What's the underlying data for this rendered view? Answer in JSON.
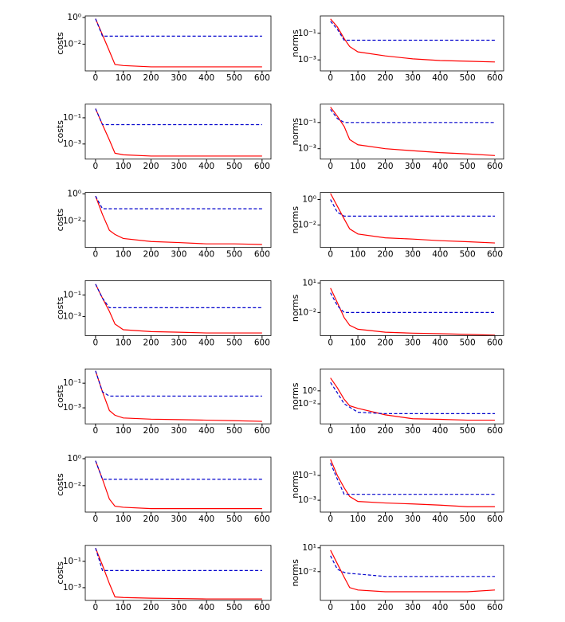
{
  "chart_data": [
    {
      "type": "line",
      "ylabel": "costs",
      "yscale": "log",
      "xlim": [
        -37,
        632
      ],
      "xticks": [
        0,
        100,
        200,
        300,
        400,
        500,
        600
      ],
      "ylim": [
        0.0001,
        1.3
      ],
      "yticks": [
        {
          "value": 1,
          "label": "10⁰"
        },
        {
          "value": 0.01,
          "label": "10⁻²"
        }
      ],
      "x": [
        0,
        25,
        50,
        70,
        100,
        200,
        300,
        400,
        500,
        600
      ],
      "series": [
        {
          "color": "#ff0000",
          "linestyle": "solid",
          "values": [
            0.8,
            0.05,
            0.003,
            0.0003,
            0.00025,
            0.0002,
            0.0002,
            0.0002,
            0.0002,
            0.0002
          ]
        },
        {
          "color": "#0000cc",
          "linestyle": "dashed",
          "values": [
            0.8,
            0.04,
            0.04,
            0.04,
            0.04,
            0.04,
            0.04,
            0.04,
            0.04,
            0.04
          ]
        }
      ]
    },
    {
      "type": "line",
      "ylabel": "norms",
      "yscale": "log",
      "xlim": [
        -37,
        632
      ],
      "xticks": [
        0,
        100,
        200,
        300,
        400,
        500,
        600
      ],
      "ylim": [
        0.00015,
        2
      ],
      "yticks": [
        {
          "value": 0.1,
          "label": "10⁻¹"
        },
        {
          "value": 0.001,
          "label": "10⁻³"
        }
      ],
      "x": [
        0,
        25,
        50,
        70,
        100,
        200,
        300,
        400,
        500,
        600
      ],
      "series": [
        {
          "color": "#ff0000",
          "linestyle": "solid",
          "values": [
            1.2,
            0.3,
            0.04,
            0.01,
            0.004,
            0.002,
            0.0012,
            0.0009,
            0.0008,
            0.0007
          ]
        },
        {
          "color": "#0000cc",
          "linestyle": "dashed",
          "values": [
            0.8,
            0.2,
            0.03,
            0.03,
            0.03,
            0.03,
            0.03,
            0.03,
            0.03,
            0.03
          ]
        }
      ]
    },
    {
      "type": "line",
      "ylabel": "costs",
      "yscale": "log",
      "xlim": [
        -37,
        632
      ],
      "xticks": [
        0,
        100,
        200,
        300,
        400,
        500,
        600
      ],
      "ylim": [
        7e-05,
        1.1
      ],
      "yticks": [
        {
          "value": 0.1,
          "label": "10⁻¹"
        },
        {
          "value": 0.001,
          "label": "10⁻³"
        }
      ],
      "x": [
        0,
        25,
        50,
        70,
        100,
        200,
        300,
        400,
        500,
        600
      ],
      "series": [
        {
          "color": "#ff0000",
          "linestyle": "solid",
          "values": [
            0.5,
            0.03,
            0.002,
            0.0002,
            0.00015,
            0.00012,
            0.00012,
            0.00012,
            0.00012,
            0.00012
          ]
        },
        {
          "color": "#0000cc",
          "linestyle": "dashed",
          "values": [
            0.5,
            0.03,
            0.03,
            0.03,
            0.03,
            0.03,
            0.03,
            0.03,
            0.03,
            0.03
          ]
        }
      ]
    },
    {
      "type": "line",
      "ylabel": "norms",
      "yscale": "log",
      "xlim": [
        -37,
        632
      ],
      "xticks": [
        0,
        100,
        200,
        300,
        400,
        500,
        600
      ],
      "ylim": [
        0.00016,
        2.5
      ],
      "yticks": [
        {
          "value": 0.1,
          "label": "10⁻¹"
        },
        {
          "value": 0.001,
          "label": "10⁻³"
        }
      ],
      "x": [
        0,
        25,
        50,
        70,
        100,
        200,
        300,
        400,
        500,
        600
      ],
      "series": [
        {
          "color": "#ff0000",
          "linestyle": "solid",
          "values": [
            1.5,
            0.3,
            0.05,
            0.005,
            0.002,
            0.001,
            0.0007,
            0.0005,
            0.0004,
            0.0003
          ]
        },
        {
          "color": "#0000cc",
          "linestyle": "dashed",
          "values": [
            1,
            0.2,
            0.1,
            0.1,
            0.1,
            0.1,
            0.1,
            0.1,
            0.1,
            0.1
          ]
        }
      ]
    },
    {
      "type": "line",
      "ylabel": "costs",
      "yscale": "log",
      "xlim": [
        -37,
        632
      ],
      "xticks": [
        0,
        100,
        200,
        300,
        400,
        500,
        600
      ],
      "ylim": [
        0.00011,
        1.3
      ],
      "yticks": [
        {
          "value": 1,
          "label": "10⁰"
        },
        {
          "value": 0.01,
          "label": "10⁻²"
        }
      ],
      "x": [
        0,
        25,
        50,
        70,
        100,
        200,
        300,
        400,
        500,
        600
      ],
      "series": [
        {
          "color": "#ff0000",
          "linestyle": "solid",
          "values": [
            0.7,
            0.03,
            0.002,
            0.001,
            0.0005,
            0.0003,
            0.00025,
            0.0002,
            0.0002,
            0.00018
          ]
        },
        {
          "color": "#0000cc",
          "linestyle": "dashed",
          "values": [
            0.7,
            0.08,
            0.08,
            0.08,
            0.08,
            0.08,
            0.08,
            0.08,
            0.08,
            0.08
          ]
        }
      ]
    },
    {
      "type": "line",
      "ylabel": "norms",
      "yscale": "log",
      "xlim": [
        -37,
        632
      ],
      "xticks": [
        0,
        100,
        200,
        300,
        400,
        500,
        600
      ],
      "ylim": [
        0.00018,
        3.6
      ],
      "yticks": [
        {
          "value": 1,
          "label": "10⁰"
        },
        {
          "value": 0.01,
          "label": "10⁻²"
        }
      ],
      "x": [
        0,
        25,
        50,
        70,
        100,
        200,
        300,
        400,
        500,
        600
      ],
      "series": [
        {
          "color": "#ff0000",
          "linestyle": "solid",
          "values": [
            3,
            0.3,
            0.03,
            0.005,
            0.002,
            0.001,
            0.0008,
            0.0006,
            0.0005,
            0.0004
          ]
        },
        {
          "color": "#0000cc",
          "linestyle": "dashed",
          "values": [
            1,
            0.1,
            0.05,
            0.05,
            0.05,
            0.05,
            0.05,
            0.05,
            0.05,
            0.05
          ]
        }
      ]
    },
    {
      "type": "line",
      "ylabel": "costs",
      "yscale": "log",
      "xlim": [
        -37,
        632
      ],
      "xticks": [
        0,
        100,
        200,
        300,
        400,
        500,
        600
      ],
      "ylim": [
        1.7e-05,
        2.1
      ],
      "yticks": [
        {
          "value": 0.1,
          "label": "10⁻¹"
        },
        {
          "value": 0.001,
          "label": "10⁻³"
        }
      ],
      "x": [
        0,
        25,
        50,
        70,
        100,
        200,
        300,
        400,
        500,
        600
      ],
      "series": [
        {
          "color": "#ff0000",
          "linestyle": "solid",
          "values": [
            1,
            0.05,
            0.003,
            0.0002,
            6e-05,
            4e-05,
            3.5e-05,
            3e-05,
            3e-05,
            3e-05
          ]
        },
        {
          "color": "#0000cc",
          "linestyle": "dashed",
          "values": [
            1,
            0.05,
            0.0065,
            0.0065,
            0.0065,
            0.0065,
            0.0065,
            0.0065,
            0.0065,
            0.0065
          ]
        }
      ]
    },
    {
      "type": "line",
      "ylabel": "norms",
      "yscale": "log",
      "xlim": [
        -37,
        632
      ],
      "xticks": [
        0,
        100,
        200,
        300,
        400,
        500,
        600
      ],
      "ylim": [
        4.5e-05,
        17
      ],
      "yticks": [
        {
          "value": 10,
          "label": "10¹"
        },
        {
          "value": 0.01,
          "label": "10⁻²"
        }
      ],
      "x": [
        0,
        25,
        50,
        70,
        100,
        200,
        300,
        400,
        500,
        600
      ],
      "series": [
        {
          "color": "#ff0000",
          "linestyle": "solid",
          "values": [
            3,
            0.1,
            0.003,
            0.0005,
            0.0002,
            0.0001,
            8e-05,
            7e-05,
            6e-05,
            5e-05
          ]
        },
        {
          "color": "#0000cc",
          "linestyle": "dashed",
          "values": [
            1,
            0.05,
            0.01,
            0.01,
            0.01,
            0.01,
            0.01,
            0.01,
            0.01,
            0.01
          ]
        }
      ]
    },
    {
      "type": "line",
      "ylabel": "costs",
      "yscale": "log",
      "xlim": [
        -37,
        632
      ],
      "xticks": [
        0,
        100,
        200,
        300,
        400,
        500,
        600
      ],
      "ylim": [
        5e-05,
        1.45
      ],
      "yticks": [
        {
          "value": 0.1,
          "label": "10⁻¹"
        },
        {
          "value": 0.001,
          "label": "10⁻³"
        }
      ],
      "x": [
        0,
        25,
        50,
        70,
        100,
        200,
        300,
        400,
        500,
        600
      ],
      "series": [
        {
          "color": "#ff0000",
          "linestyle": "solid",
          "values": [
            1,
            0.02,
            0.0006,
            0.00025,
            0.00015,
            0.00012,
            0.00011,
            0.0001,
            9e-05,
            8e-05
          ]
        },
        {
          "color": "#0000cc",
          "linestyle": "dashed",
          "values": [
            1,
            0.02,
            0.009,
            0.009,
            0.009,
            0.009,
            0.009,
            0.009,
            0.009,
            0.009
          ]
        }
      ]
    },
    {
      "type": "line",
      "ylabel": "norms",
      "yscale": "log",
      "xlim": [
        -37,
        632
      ],
      "xticks": [
        0,
        100,
        200,
        300,
        400,
        500,
        600
      ],
      "ylim": [
        8e-06,
        2500
      ],
      "yticks": [
        {
          "value": 1,
          "label": "10⁰"
        },
        {
          "value": 0.01,
          "label": "10⁻²"
        }
      ],
      "x": [
        0,
        25,
        50,
        70,
        100,
        200,
        300,
        400,
        500,
        600
      ],
      "series": [
        {
          "color": "#ff0000",
          "linestyle": "solid",
          "values": [
            100,
            3,
            0.05,
            0.005,
            0.002,
            0.0002,
            5e-05,
            4e-05,
            3e-05,
            3e-05
          ]
        },
        {
          "color": "#0000cc",
          "linestyle": "dashed",
          "values": [
            20,
            0.5,
            0.01,
            0.003,
            0.0005,
            0.0003,
            0.0003,
            0.0003,
            0.0003,
            0.0003
          ]
        }
      ]
    },
    {
      "type": "line",
      "ylabel": "costs",
      "yscale": "log",
      "xlim": [
        -37,
        632
      ],
      "xticks": [
        0,
        100,
        200,
        300,
        400,
        500,
        600
      ],
      "ylim": [
        0.00011,
        1.3
      ],
      "yticks": [
        {
          "value": 1,
          "label": "10⁰"
        },
        {
          "value": 0.01,
          "label": "10⁻²"
        }
      ],
      "x": [
        0,
        25,
        50,
        70,
        100,
        200,
        300,
        400,
        500,
        600
      ],
      "series": [
        {
          "color": "#ff0000",
          "linestyle": "solid",
          "values": [
            0.7,
            0.03,
            0.001,
            0.0003,
            0.00025,
            0.0002,
            0.0002,
            0.0002,
            0.0002,
            0.0002
          ]
        },
        {
          "color": "#0000cc",
          "linestyle": "dashed",
          "values": [
            0.7,
            0.03,
            0.03,
            0.03,
            0.03,
            0.03,
            0.03,
            0.03,
            0.03,
            0.03
          ]
        }
      ]
    },
    {
      "type": "line",
      "ylabel": "norms",
      "yscale": "log",
      "xlim": [
        -37,
        632
      ],
      "xticks": [
        0,
        100,
        200,
        300,
        400,
        500,
        600
      ],
      "ylim": [
        0.00011,
        3
      ],
      "yticks": [
        {
          "value": 0.1,
          "label": "10⁻¹"
        },
        {
          "value": 0.001,
          "label": "10⁻³"
        }
      ],
      "x": [
        0,
        25,
        50,
        70,
        100,
        200,
        300,
        400,
        500,
        600
      ],
      "series": [
        {
          "color": "#ff0000",
          "linestyle": "solid",
          "values": [
            2,
            0.1,
            0.01,
            0.002,
            0.0008,
            0.0006,
            0.0005,
            0.0004,
            0.0003,
            0.0003
          ]
        },
        {
          "color": "#0000cc",
          "linestyle": "dashed",
          "values": [
            1,
            0.05,
            0.003,
            0.003,
            0.003,
            0.003,
            0.003,
            0.003,
            0.003,
            0.003
          ]
        }
      ]
    },
    {
      "type": "line",
      "ylabel": "costs",
      "yscale": "log",
      "xlim": [
        -37,
        632
      ],
      "xticks": [
        0,
        100,
        200,
        300,
        400,
        500,
        600
      ],
      "ylim": [
        0.00011,
        1.6
      ],
      "yticks": [
        {
          "value": 0.1,
          "label": "10⁻¹"
        },
        {
          "value": 0.001,
          "label": "10⁻³"
        }
      ],
      "x": [
        0,
        25,
        50,
        70,
        100,
        200,
        300,
        400,
        500,
        600
      ],
      "series": [
        {
          "color": "#ff0000",
          "linestyle": "solid",
          "values": [
            1,
            0.05,
            0.002,
            0.0002,
            0.00018,
            0.00016,
            0.00015,
            0.00014,
            0.00014,
            0.00014
          ]
        },
        {
          "color": "#0000cc",
          "linestyle": "dashed",
          "values": [
            1,
            0.02,
            0.02,
            0.02,
            0.02,
            0.02,
            0.02,
            0.02,
            0.02,
            0.02
          ]
        }
      ]
    },
    {
      "type": "line",
      "ylabel": "norms",
      "yscale": "log",
      "xlim": [
        -37,
        632
      ],
      "xticks": [
        0,
        100,
        200,
        300,
        400,
        500,
        600
      ],
      "ylim": [
        2.5e-06,
        20
      ],
      "yticks": [
        {
          "value": 10,
          "label": "10¹"
        },
        {
          "value": 0.01,
          "label": "10⁻²"
        }
      ],
      "x": [
        0,
        25,
        50,
        70,
        100,
        200,
        300,
        400,
        500,
        600
      ],
      "series": [
        {
          "color": "#ff0000",
          "linestyle": "solid",
          "values": [
            5,
            0.1,
            0.002,
            0.0001,
            5e-05,
            3e-05,
            3e-05,
            3e-05,
            3e-05,
            5e-05
          ]
        },
        {
          "color": "#0000cc",
          "linestyle": "dashed",
          "values": [
            1,
            0.02,
            0.008,
            0.006,
            0.005,
            0.0025,
            0.0025,
            0.0025,
            0.0025,
            0.0025
          ]
        }
      ]
    }
  ]
}
